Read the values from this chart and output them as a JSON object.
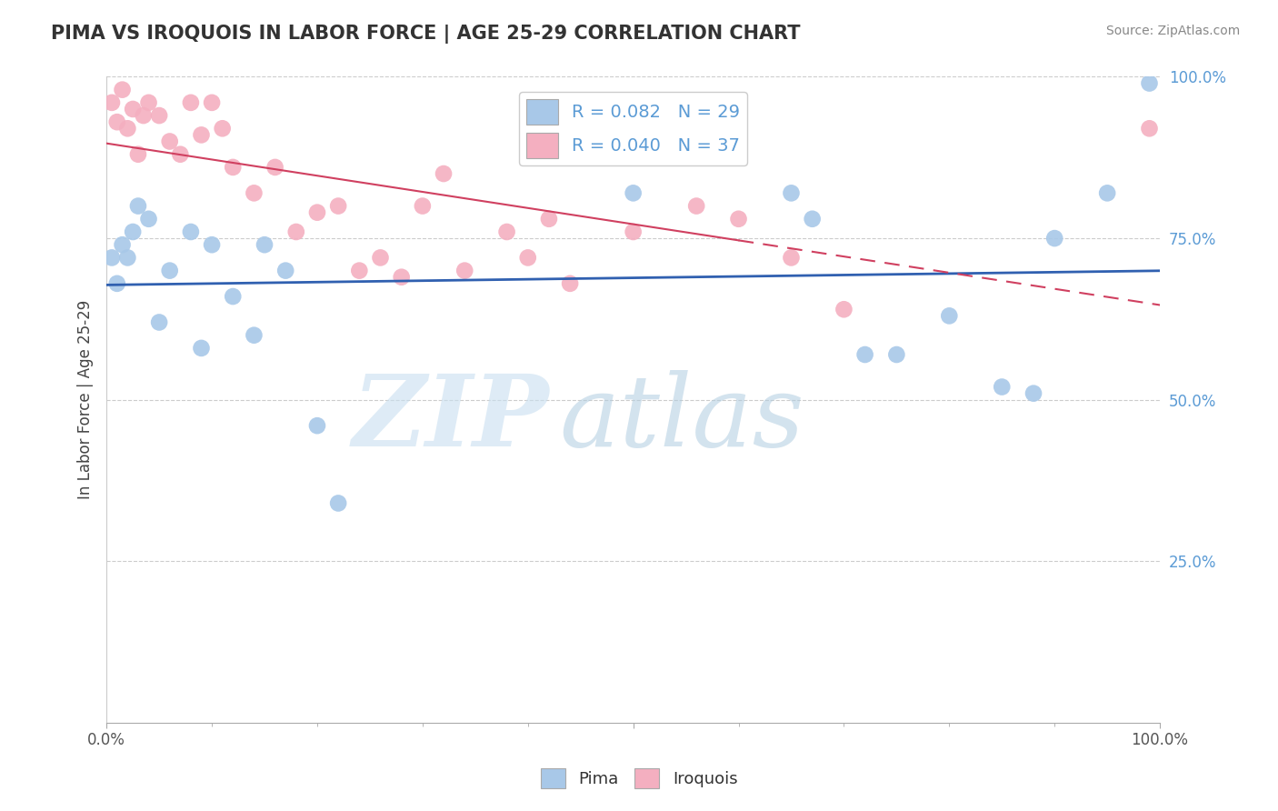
{
  "title": "PIMA VS IROQUOIS IN LABOR FORCE | AGE 25-29 CORRELATION CHART",
  "source": "Source: ZipAtlas.com",
  "ylabel": "In Labor Force | Age 25-29",
  "R_blue": 0.082,
  "N_blue": 29,
  "R_pink": 0.04,
  "N_pink": 37,
  "blue_color": "#a8c8e8",
  "pink_color": "#f4afc0",
  "blue_line_color": "#3060b0",
  "pink_line_color": "#d04060",
  "blue_points_x": [
    0.005,
    0.01,
    0.015,
    0.02,
    0.025,
    0.03,
    0.04,
    0.05,
    0.06,
    0.08,
    0.09,
    0.1,
    0.12,
    0.14,
    0.15,
    0.17,
    0.2,
    0.22,
    0.5,
    0.65,
    0.67,
    0.72,
    0.75,
    0.8,
    0.85,
    0.88,
    0.9,
    0.95,
    0.99
  ],
  "blue_points_y": [
    0.72,
    0.68,
    0.74,
    0.72,
    0.76,
    0.8,
    0.78,
    0.62,
    0.7,
    0.76,
    0.58,
    0.74,
    0.66,
    0.6,
    0.74,
    0.7,
    0.46,
    0.34,
    0.82,
    0.82,
    0.78,
    0.57,
    0.57,
    0.63,
    0.52,
    0.51,
    0.75,
    0.82,
    0.99
  ],
  "pink_points_x": [
    0.005,
    0.01,
    0.015,
    0.02,
    0.025,
    0.03,
    0.035,
    0.04,
    0.05,
    0.06,
    0.07,
    0.08,
    0.09,
    0.1,
    0.11,
    0.12,
    0.14,
    0.16,
    0.18,
    0.2,
    0.22,
    0.24,
    0.26,
    0.28,
    0.3,
    0.32,
    0.34,
    0.38,
    0.4,
    0.42,
    0.44,
    0.5,
    0.56,
    0.6,
    0.65,
    0.7,
    0.99
  ],
  "pink_points_y": [
    0.96,
    0.93,
    0.98,
    0.92,
    0.95,
    0.88,
    0.94,
    0.96,
    0.94,
    0.9,
    0.88,
    0.96,
    0.91,
    0.96,
    0.92,
    0.86,
    0.82,
    0.86,
    0.76,
    0.79,
    0.8,
    0.7,
    0.72,
    0.69,
    0.8,
    0.85,
    0.7,
    0.76,
    0.72,
    0.78,
    0.68,
    0.76,
    0.8,
    0.78,
    0.72,
    0.64,
    0.92
  ]
}
